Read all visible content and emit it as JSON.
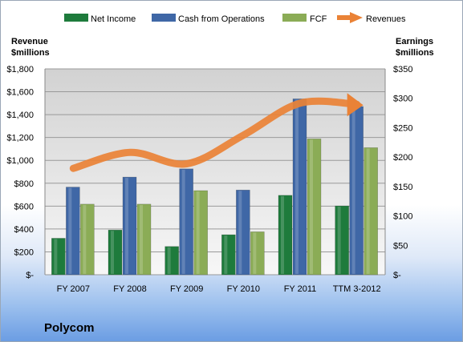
{
  "chart_data": {
    "type": "bar",
    "categories": [
      "FY 2007",
      "FY 2008",
      "FY 2009",
      "FY 2010",
      "FY 2011",
      "TTM 3-2012"
    ],
    "series": [
      {
        "name": "Net Income",
        "axis": "right",
        "type": "bar",
        "color": "#1e7b3c",
        "values": [
          62,
          76,
          48,
          68,
          135,
          117
        ]
      },
      {
        "name": "Cash from Operations",
        "axis": "right",
        "type": "bar",
        "color": "#3f67a6",
        "values": [
          149,
          166,
          180,
          144,
          299,
          286
        ]
      },
      {
        "name": "FCF",
        "axis": "right",
        "type": "bar",
        "color": "#8bac56",
        "values": [
          120,
          120,
          143,
          73,
          231,
          216
        ]
      },
      {
        "name": "Revenues",
        "axis": "left",
        "type": "line",
        "color": "#ea8236",
        "values": [
          930,
          1070,
          970,
          1220,
          1500,
          1490
        ]
      }
    ],
    "left_axis": {
      "title_line1": "Revenue",
      "title_line2": "$millions",
      "ylim": [
        0,
        1800
      ],
      "ticks": [
        "$-",
        "$200",
        "$400",
        "$600",
        "$800",
        "$1,000",
        "$1,200",
        "$1,400",
        "$1,600",
        "$1,800"
      ]
    },
    "right_axis": {
      "title_line1": "Earnings",
      "title_line2": "$millions",
      "ylim": [
        0,
        350
      ],
      "ticks": [
        "$-",
        "$50",
        "$100",
        "$150",
        "$200",
        "$250",
        "$300",
        "$350"
      ]
    },
    "grid": true,
    "legend_placement": "top",
    "company": "Polycom"
  }
}
